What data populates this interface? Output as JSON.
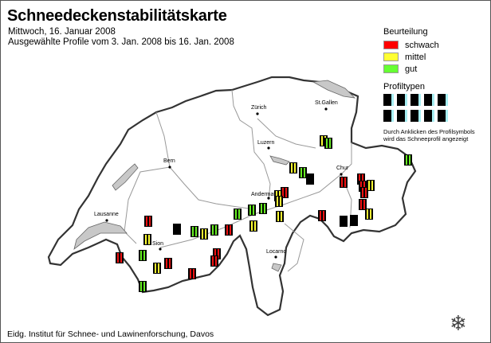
{
  "title": "Schneedeckenstabilitätskarte",
  "date": "Mittwoch, 16. Januar 2008",
  "range": "Ausgewählte Profile vom 3. Jan. 2008 bis 16. Jan. 2008",
  "legend": {
    "heading": "Beurteilung",
    "items": [
      {
        "label": "schwach",
        "color": "#ff0000"
      },
      {
        "label": "mittel",
        "color": "#ffff33"
      },
      {
        "label": "gut",
        "color": "#66ff33"
      }
    ]
  },
  "profile_types": {
    "heading": "Profiltypen",
    "count": 10
  },
  "hint": [
    "Durch Anklicken des Profilsymbols",
    "wird das Schneeprofil angezeigt"
  ],
  "cities": [
    "Zürich",
    "St.Gallen",
    "Luzern",
    "Bern",
    "Chur",
    "Andermatt",
    "Lausanne",
    "Sion",
    "Locarno"
  ],
  "profiles": [
    "yellow",
    "green",
    "yellow",
    "green",
    "none",
    "yellow",
    "red",
    "yellow",
    "green",
    "yellow",
    "green",
    "green",
    "yellow",
    "red",
    "red",
    "red",
    "red",
    "red",
    "yellow",
    "red",
    "green",
    "none",
    "yellow",
    "none",
    "red",
    "none",
    "green",
    "yellow",
    "green",
    "red",
    "red",
    "yellow",
    "green",
    "red",
    "yellow",
    "red",
    "red",
    "red",
    "green"
  ],
  "rating_colors": {
    "red": "#ee1111",
    "yellow": "#ffff33",
    "green": "#66ee22",
    "none": "#000000"
  },
  "footer": "Eidg. Institut für Schnee- und Lawinenforschung, Davos",
  "logo": "snowflake-icon"
}
